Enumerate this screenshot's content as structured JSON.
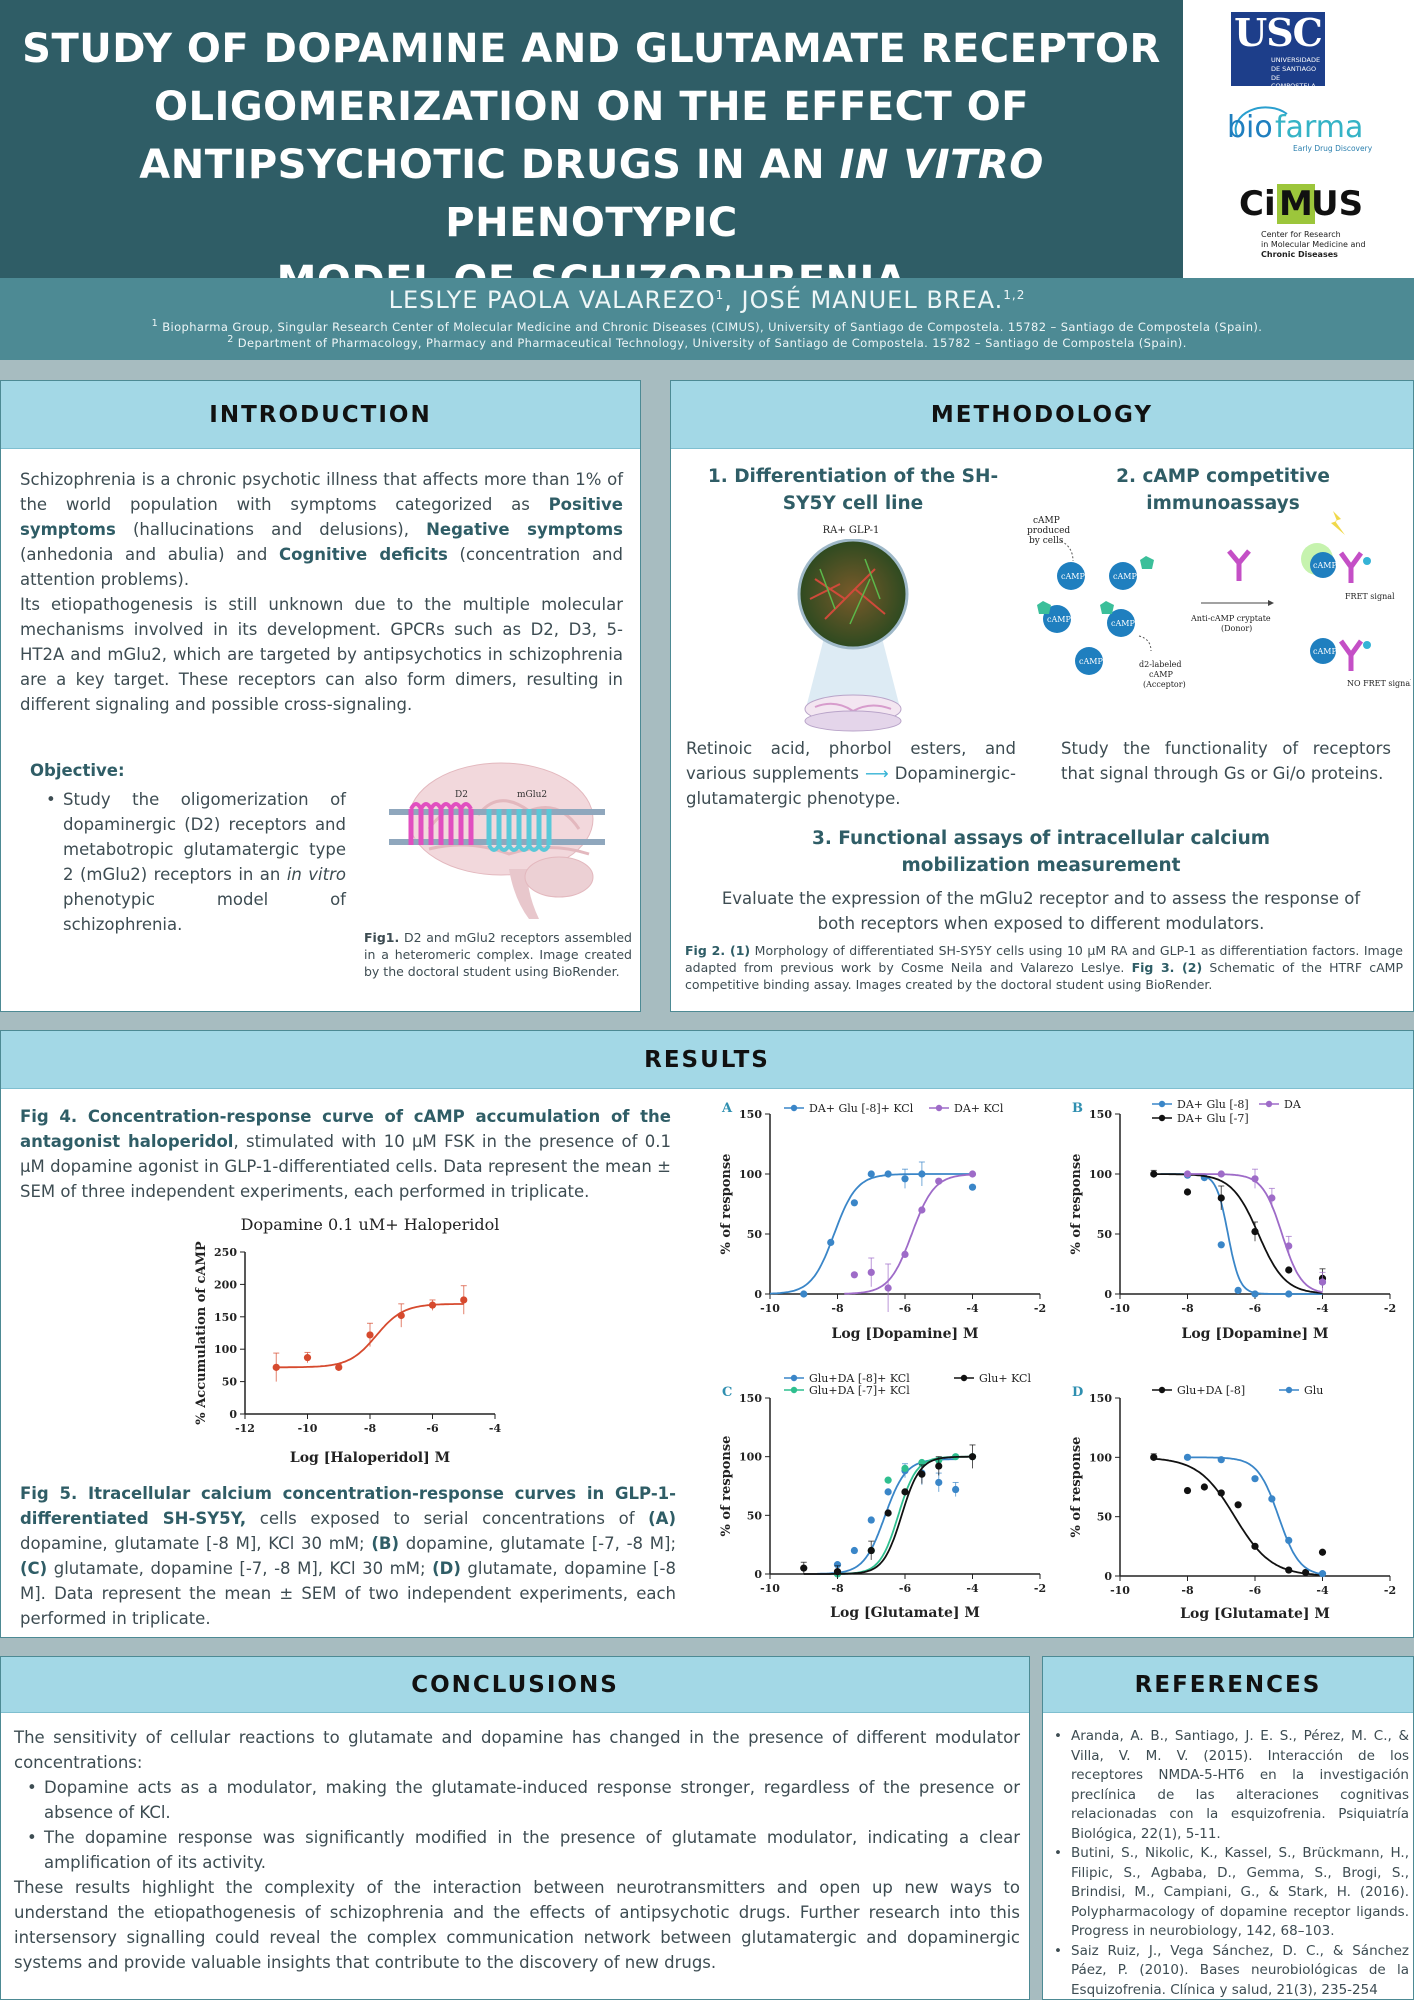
{
  "header": {
    "title_line1": "STUDY OF DOPAMINE AND GLUTAMATE RECEPTOR",
    "title_line2": "OLIGOMERIZATION ON THE EFFECT OF",
    "title_line3_a": "ANTIPSYCHOTIC DRUGS IN AN ",
    "title_line3_em": "IN VITRO",
    "title_line3_b": " PHENOTYPIC",
    "title_line4": "MODEL OF SCHIZOPHRENIA",
    "author1": "LESLYE PAOLA VALAREZO",
    "author1_sup": "1",
    "author2": ", JOSÉ MANUEL BREA.",
    "author2_sup": "1,2",
    "aff1_sup": "1",
    "aff1": " Biopharma Group, Singular Research Center of Molecular Medicine and Chronic Diseases (CIMUS), University of Santiago de Compostela. 15782 – Santiago de Compostela (Spain).",
    "aff2_sup": "2",
    "aff2": " Department of Pharmacology, Pharmacy and Pharmaceutical Technology, University of Santiago de Compostela. 15782 – Santiago de Compostela (Spain)."
  },
  "logos": {
    "usc": "USC",
    "usc_sub1": "UNIVERSIDADE",
    "usc_sub2": "DE SANTIAGO",
    "usc_sub3": "DE COMPOSTELA",
    "biofarma_a": "bio",
    "biofarma_b": "farma",
    "biofarma_sub": "Early Drug Discovery",
    "cimus_a": "Ci",
    "cimus_b": "M",
    "cimus_c": "US",
    "cimus_sub1": "Center for Research",
    "cimus_sub2": "in Molecular Medicine and",
    "cimus_sub3": "Chronic Diseases"
  },
  "introduction": {
    "heading": "INTRODUCTION",
    "p1_a": "Schizophrenia is a chronic psychotic illness that affects more than 1% of the world population with symptoms categorized as ",
    "p1_b": "Positive symptoms",
    "p1_c": " (hallucinations and delusions), ",
    "p1_d": "Negative symptoms",
    "p1_e": " (anhedonia and abulia)  and ",
    "p1_f": "Cognitive deficits",
    "p1_g": " (concentration  and attention problems).",
    "p2": "Its etiopathogenesis is still unknown due to the multiple molecular mechanisms involved in its development. GPCRs such as D2, D3, 5-HT2A and mGlu2, which are targeted by antipsychotics in schizophrenia are a key target. These receptors can also form dimers, resulting in different signaling and possible cross-signaling.",
    "objective_label": "Objective:",
    "objective_a": "Study the oligomerization of dopaminergic (D2) receptors and metabotropic glutamatergic type 2 (mGlu2) receptors in an ",
    "objective_em": "in vitro",
    "objective_b": " phenotypic model of schizophrenia.",
    "fig1_label": "Fig1.",
    "fig1_text": " D2 and mGlu2 receptors assembled in a heteromeric complex. Image created by the doctoral student using BioRender.",
    "brain_d2": "D2",
    "brain_mglu2": "mGlu2"
  },
  "methodology": {
    "heading": "METHODOLOGY",
    "s1_title": "1. Differentiation of the SH-SY5Y cell line",
    "s1_img_label": "RA+ GLP-1",
    "s1_text_a": "Retinoic acid, phorbol esters, and various supplements ",
    "s1_arrow": "⟶",
    "s1_text_b": " Dopaminergic-glutamatergic phenotype.",
    "s2_title": "2. cAMP competitive immunoassays",
    "s2_text": "Study the functionality of receptors that signal through Gs or Gi/o proteins.",
    "s2_camp": "cAMP",
    "s2_produced1": "cAMP",
    "s2_produced2": "produced",
    "s2_produced3": "by cells",
    "s2_anti1": "Anti-cAMP cryptate",
    "s2_anti2": "(Donor)",
    "s2_d2_1": "d2-labeled",
    "s2_d2_2": "cAMP",
    "s2_d2_3": "(Acceptor)",
    "s2_fret": "FRET signal",
    "s2_nofret": "NO FRET signal",
    "s3_title": "3. Functional assays of intracellular calcium mobilization measurement",
    "s3_text": "Evaluate the expression of the mGlu2 receptor and to assess the response of both receptors when exposed to different modulators.",
    "fig2_label": "Fig 2. (1)",
    "fig2_text": " Morphology of differentiated SH-SY5Y cells using 10 µM RA and GLP-1 as differentiation factors. Image adapted from previous work by Cosme Neila and Valarezo Leslye. ",
    "fig3_label": "Fig 3. (2)",
    "fig3_text": " Schematic of the HTRF cAMP competitive binding assay. Images created by the doctoral student using BioRender."
  },
  "results": {
    "heading": "RESULTS",
    "fig4_bold": "Fig 4. Concentration-response curve of cAMP accumulation of the antagonist haloperidol",
    "fig4_text": ", stimulated with 10 µM FSK in the presence of 0.1 µM dopamine agonist in GLP-1-differentiated cells. Data represent the mean ± SEM of three independent experiments, each performed in triplicate.",
    "fig5_bold": "Fig 5. Itracellular calcium concentration-response curves in GLP-1-differentiated SH-SY5Y,",
    "fig5_t1": " cells exposed to serial concentrations of ",
    "fig5_A": "(A)",
    "fig5_t2": " dopamine, glutamate [-8 M], KCl 30 mM; ",
    "fig5_B": "(B)",
    "fig5_t3": " dopamine, glutamate [-7, -8 M]; ",
    "fig5_C": "(C)",
    "fig5_t4": " glutamate, dopamine [-7, -8 M], KCl 30 mM; ",
    "fig5_D": "(D)",
    "fig5_t5": " glutamate, dopamine [-8 M]. Data represent the mean ± SEM of two independent experiments, each performed in triplicate."
  },
  "conclusions": {
    "heading": "CONCLUSIONS",
    "intro": "The sensitivity of cellular reactions to glutamate and dopamine has changed in the presence of different modulator concentrations:",
    "b1": "Dopamine acts as a modulator, making the glutamate-induced response stronger, regardless of the presence or absence of KCl.",
    "b2": "The dopamine response was significantly modified in the presence of glutamate modulator, indicating a clear amplification of its activity.",
    "outro": "These results highlight the complexity of the interaction between neurotransmitters and open up new ways to understand the etiopathogenesis of schizophrenia and the effects of antipsychotic drugs. Further research into this intersensory signalling could reveal the complex communication network between glutamatergic and dopaminergic systems and provide valuable insights that contribute to the discovery of new drugs."
  },
  "references": {
    "heading": "REFERENCES",
    "r1": " Aranda, A. B., Santiago, J. E. S., Pérez, M. C., & Villa, V. M. V. (2015). Interacción de los receptores NMDA-5-HT6 en la investigación preclínica de las alteraciones cognitivas relacionadas con la esquizofrenia. Psiquiatría Biológica, 22(1), 5-11.",
    "r2": "Butini, S., Nikolic, K., Kassel, S., Brückmann, H., Filipic, S., Agbaba, D., Gemma, S., Brogi, S., Brindisi, M., Campiani, G., & Stark, H. (2016). Polypharmacology of dopamine receptor ligands. Progress in neurobiology, 142, 68–103.",
    "r3": "Saiz Ruiz, J., Vega Sánchez, D. C., & Sánchez Páez, P. (2010). Bases neurobiológicas de la Esquizofrenia. Clínica y salud, 21(3), 235-254"
  },
  "chart_data": [
    {
      "id": "fig4",
      "type": "line",
      "title": "Dopamine 0.1 uM+ Haloperidol",
      "xlabel": "Log [Haloperidol] M",
      "ylabel": "% Accumulation of cAMP",
      "xlim": [
        -12,
        -4
      ],
      "ylim": [
        0,
        250
      ],
      "xticks": [
        -12,
        -10,
        -8,
        -6,
        -4
      ],
      "yticks": [
        0,
        50,
        100,
        150,
        200,
        250
      ],
      "series": [
        {
          "color": "#d64a2e",
          "fit": {
            "bottom": 72,
            "top": 170,
            "logec50": -7.8,
            "hill": 1
          },
          "x": [
            -11,
            -10,
            -9,
            -8,
            -7,
            -6,
            -5
          ],
          "y": [
            72,
            87,
            72,
            122,
            152,
            168,
            176
          ],
          "err": [
            22,
            8,
            5,
            18,
            18,
            8,
            22
          ]
        }
      ]
    },
    {
      "id": "A",
      "panel": "A",
      "type": "line",
      "xlabel": "Log [Dopamine] M",
      "ylabel": "% of response",
      "xlim": [
        -10,
        -2
      ],
      "ylim": [
        0,
        150
      ],
      "xticks": [
        -10,
        -8,
        -6,
        -4,
        -2
      ],
      "yticks": [
        0,
        50,
        100,
        150
      ],
      "series": [
        {
          "name": "DA+ Glu [-8]+ KCl",
          "color": "#3a86c8",
          "fit": {
            "bottom": 0,
            "top": 100,
            "logec50": -8.1,
            "hill": 1.3
          },
          "x": [
            -9,
            -8.2,
            -7.5,
            -7,
            -6.5,
            -6,
            -5.5,
            -4
          ],
          "y": [
            0,
            43,
            76,
            100,
            100,
            96,
            100,
            89
          ],
          "err": [
            0,
            0,
            0,
            0,
            0,
            8,
            10,
            0
          ]
        },
        {
          "name": "DA+ KCl",
          "color": "#9e6bc8",
          "fit": {
            "bottom": 0,
            "top": 100,
            "logec50": -5.8,
            "hill": 1.3
          },
          "x": [
            -7.5,
            -7,
            -6.5,
            -6,
            -5.5,
            -5,
            -4
          ],
          "y": [
            16,
            18,
            5,
            33,
            70,
            94,
            100
          ],
          "err": [
            0,
            12,
            20,
            0,
            0,
            0,
            0
          ]
        }
      ]
    },
    {
      "id": "B",
      "panel": "B",
      "type": "line",
      "xlabel": "Log [Dopamine] M",
      "ylabel": "% of response",
      "xlim": [
        -10,
        -2
      ],
      "ylim": [
        0,
        150
      ],
      "xticks": [
        -10,
        -8,
        -6,
        -4,
        -2
      ],
      "yticks": [
        0,
        50,
        100,
        150
      ],
      "series": [
        {
          "name": "DA+ Glu [-8]",
          "color": "#3a86c8",
          "fit": {
            "bottom": 0,
            "top": 100,
            "logec50": -6.8,
            "hill": -2.5
          },
          "x": [
            -8,
            -7.5,
            -7,
            -6.5,
            -6,
            -5,
            -4
          ],
          "y": [
            99,
            97,
            41,
            3,
            0,
            0,
            10
          ],
          "err": [
            0,
            0,
            0,
            0,
            0,
            0,
            0
          ]
        },
        {
          "name": "DA+ Glu [-7]",
          "color": "#111111",
          "fit": {
            "bottom": 0,
            "top": 100,
            "logec50": -5.9,
            "hill": -1.1
          },
          "x": [
            -9,
            -8,
            -7,
            -6,
            -5,
            -4
          ],
          "y": [
            100,
            85,
            80,
            52,
            20,
            13
          ],
          "err": [
            3,
            0,
            10,
            8,
            0,
            8
          ]
        },
        {
          "name": "DA",
          "color": "#9e6bc8",
          "fit": {
            "bottom": 0,
            "top": 100,
            "logec50": -5.2,
            "hill": -1.5
          },
          "x": [
            -8,
            -7,
            -6,
            -5.5,
            -5,
            -4
          ],
          "y": [
            100,
            100,
            96,
            80,
            40,
            10
          ],
          "err": [
            0,
            0,
            8,
            8,
            8,
            8
          ]
        }
      ]
    },
    {
      "id": "C",
      "panel": "C",
      "type": "line",
      "xlabel": "Log [Glutamate] M",
      "ylabel": "% of response",
      "xlim": [
        -10,
        -2
      ],
      "ylim": [
        0,
        150
      ],
      "xticks": [
        -10,
        -8,
        -6,
        -4,
        -2
      ],
      "yticks": [
        0,
        50,
        100,
        150
      ],
      "series": [
        {
          "name": "Glu+DA [-8]+ KCl",
          "color": "#3a86c8",
          "fit": {
            "bottom": 0,
            "top": 98,
            "logec50": -6.6,
            "hill": 1.4
          },
          "x": [
            -8,
            -7.5,
            -7,
            -6.5,
            -6,
            -5.5,
            -5,
            -4.5
          ],
          "y": [
            8,
            20,
            46,
            70,
            88,
            86,
            78,
            72
          ],
          "err": [
            0,
            0,
            0,
            0,
            6,
            10,
            8,
            6
          ]
        },
        {
          "name": "Glu+DA [-7]+ KCl",
          "color": "#2fbf8f",
          "fit": {
            "bottom": 0,
            "top": 100,
            "logec50": -6.2,
            "hill": 1.6
          },
          "x": [
            -8,
            -7,
            -6.5,
            -6,
            -5.5,
            -5,
            -4.5,
            -4
          ],
          "y": [
            0,
            20,
            80,
            90,
            95,
            97,
            100,
            100
          ],
          "err": [
            0,
            0,
            0,
            0,
            0,
            0,
            0,
            0
          ]
        },
        {
          "name": "Glu+ KCl",
          "color": "#111111",
          "fit": {
            "bottom": 0,
            "top": 100,
            "logec50": -6.1,
            "hill": 1.6
          },
          "x": [
            -9,
            -8,
            -7,
            -6.5,
            -6,
            -5.5,
            -5,
            -4
          ],
          "y": [
            5,
            2,
            20,
            52,
            70,
            85,
            92,
            100
          ],
          "err": [
            5,
            5,
            8,
            0,
            0,
            8,
            8,
            10
          ]
        }
      ]
    },
    {
      "id": "D",
      "panel": "D",
      "type": "line",
      "xlabel": "Log [Glutamate] M",
      "ylabel": "% of response",
      "xlim": [
        -10,
        -2
      ],
      "ylim": [
        0,
        150
      ],
      "xticks": [
        -10,
        -8,
        -6,
        -4,
        -2
      ],
      "yticks": [
        0,
        50,
        100,
        150
      ],
      "series": [
        {
          "name": "Glu+DA [-8]",
          "color": "#111111",
          "fit": {
            "bottom": 0,
            "top": 100,
            "logec50": -6.6,
            "hill": -0.8
          },
          "x": [
            -9,
            -8,
            -7.5,
            -7,
            -6.5,
            -6,
            -5,
            -4.5,
            -4
          ],
          "y": [
            100,
            72,
            75,
            70,
            60,
            25,
            5,
            3,
            20
          ],
          "err": [
            3,
            0,
            0,
            0,
            0,
            0,
            0,
            0,
            0
          ]
        },
        {
          "name": "Glu",
          "color": "#3a86c8",
          "fit": {
            "bottom": 0,
            "top": 100,
            "logec50": -5.3,
            "hill": -1.4
          },
          "x": [
            -8,
            -7,
            -6,
            -5.5,
            -5,
            -4
          ],
          "y": [
            100,
            98,
            82,
            65,
            30,
            2
          ],
          "err": [
            0,
            0,
            0,
            0,
            0,
            0
          ]
        }
      ]
    }
  ]
}
